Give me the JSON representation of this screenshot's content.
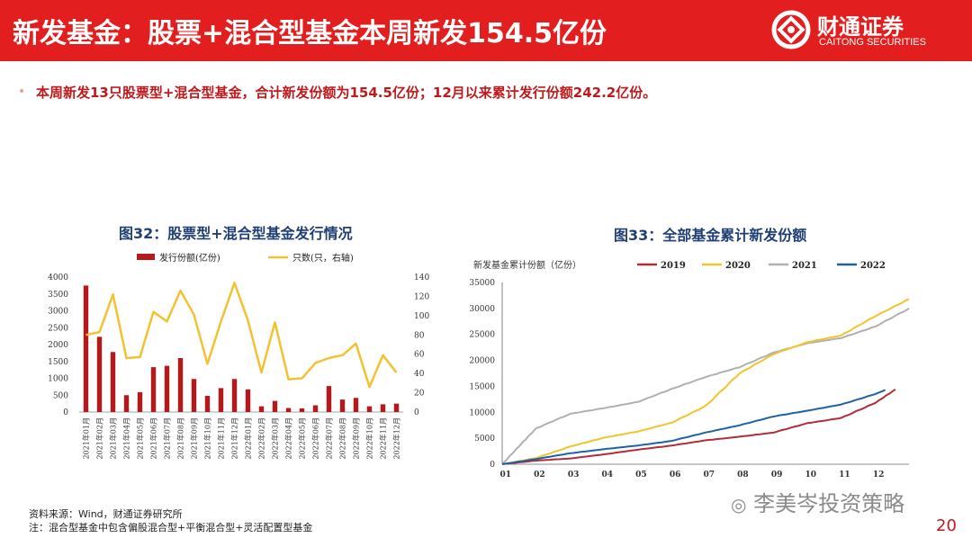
{
  "header": {
    "title": "新发基金：股票+混合型基金本周新发154.5亿份",
    "logo_cn": "财通证券",
    "logo_en": "CAITONG SECURITIES"
  },
  "bullet": "本周新发13只股票型+混合型基金，合计新发份额为154.5亿份；12月以来累计发行份额242.2亿份。",
  "colors": {
    "header": "#e31e1e",
    "bar": "#b5191b",
    "line_yellow": "#f2c230",
    "title_blue": "#1f3f75",
    "c2019": "#b32c3a",
    "c2020": "#f0c52a",
    "c2021": "#b0b0b0",
    "c2022": "#1e62a4"
  },
  "chart_data": [
    {
      "type": "bar",
      "title": "图32：股票型+混合型基金发行情况",
      "legend_bar": "发行份额(亿份)",
      "legend_line": "只数(只，右轴)",
      "categories": [
        "2021年01月",
        "2021年02月",
        "2021年03月",
        "2021年04月",
        "2021年05月",
        "2021年06月",
        "2021年07月",
        "2021年08月",
        "2021年09月",
        "2021年10月",
        "2021年11月",
        "2021年12月",
        "2022年01月",
        "2022年02月",
        "2022年03月",
        "2022年04月",
        "2022年05月",
        "2022年06月",
        "2022年07月",
        "2022年08月",
        "2022年09月",
        "2022年10月",
        "2022年11月",
        "2022年12月"
      ],
      "series": [
        {
          "name": "发行份额(亿份)",
          "type": "bar",
          "axis": "left",
          "values": [
            3750,
            2230,
            1780,
            500,
            590,
            1330,
            1370,
            1600,
            980,
            480,
            710,
            980,
            670,
            170,
            330,
            120,
            110,
            200,
            770,
            370,
            420,
            170,
            230,
            250
          ]
        },
        {
          "name": "只数(只，右轴)",
          "type": "line",
          "axis": "right",
          "values": [
            80,
            83,
            122,
            56,
            57,
            104,
            94,
            126,
            101,
            50,
            94,
            134,
            95,
            41,
            93,
            34,
            35,
            51,
            56,
            59,
            71,
            26,
            59,
            41
          ]
        }
      ],
      "ylim_left": [
        0,
        4000
      ],
      "yticks_left": [
        0,
        500,
        1000,
        1500,
        2000,
        2500,
        3000,
        3500,
        4000
      ],
      "ylim_right": [
        0,
        140
      ],
      "yticks_right": [
        0,
        20,
        40,
        60,
        80,
        100,
        120,
        140
      ]
    },
    {
      "type": "line",
      "title": "图33：全部基金累计新发份额",
      "ylabel": "新发基金累计份额（亿份）",
      "x_ticks": [
        "01",
        "02",
        "03",
        "04",
        "05",
        "06",
        "07",
        "08",
        "09",
        "10",
        "11",
        "12"
      ],
      "ylim": [
        0,
        35000
      ],
      "yticks": [
        0,
        5000,
        10000,
        15000,
        20000,
        25000,
        30000,
        35000
      ],
      "series": [
        {
          "name": "2019",
          "x": [
            0,
            1,
            2,
            3,
            4,
            5,
            6,
            7,
            8,
            9,
            10,
            11,
            11.6
          ],
          "values": [
            0,
            700,
            1100,
            1900,
            2800,
            3600,
            4600,
            5300,
            6100,
            7900,
            8900,
            11800,
            14400
          ]
        },
        {
          "name": "2020",
          "x": [
            0,
            1,
            2,
            3,
            4,
            5,
            6,
            7,
            8,
            9,
            10,
            11,
            12
          ],
          "values": [
            0,
            1200,
            3400,
            5100,
            6300,
            8000,
            11200,
            17500,
            21200,
            23500,
            24800,
            28500,
            31800
          ]
        },
        {
          "name": "2021",
          "x": [
            0,
            0.5,
            1,
            2,
            3,
            4,
            5,
            6,
            7,
            8,
            9,
            10,
            11,
            12
          ],
          "values": [
            0,
            3500,
            6900,
            9700,
            10800,
            12000,
            14500,
            16800,
            18700,
            21500,
            23300,
            24300,
            26500,
            30000
          ]
        },
        {
          "name": "2022",
          "x": [
            0,
            1,
            2,
            3,
            4,
            5,
            6,
            7,
            8,
            9,
            10,
            11,
            11.3
          ],
          "values": [
            0,
            1000,
            2100,
            2900,
            3600,
            4500,
            6100,
            7500,
            9200,
            10300,
            11500,
            13500,
            14300
          ]
        }
      ]
    }
  ],
  "footer": {
    "source": "资料来源：Wind，财通证券研究所",
    "note": "注：混合型基金中包含偏股混合型+平衡混合型+灵活配置型基金"
  },
  "watermark": "李美岑投资策略",
  "page_number": "20"
}
